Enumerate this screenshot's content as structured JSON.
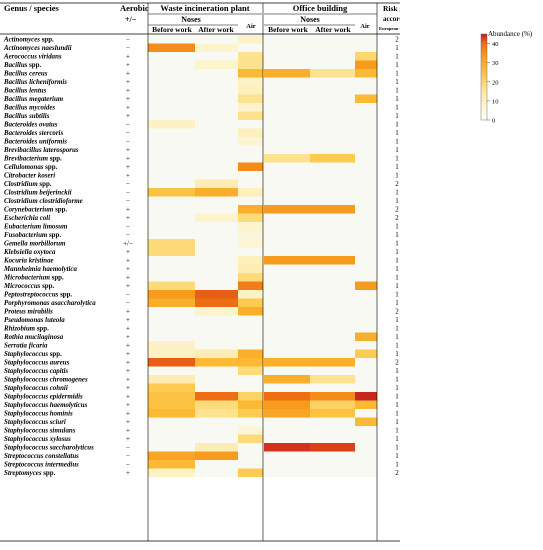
{
  "header": {
    "col_genus": "Genus / species",
    "col_aerobic": "Aerobic",
    "col_aerobic_sub": "+/−",
    "group_waste": "Waste incineration plant",
    "group_office": "Office building",
    "noses": "Noses",
    "air": "Air",
    "before_work": "Before work",
    "after_work": "After work",
    "risk_title_1": "Risk group",
    "risk_title_2": "according to",
    "risk_title_3": "European Commission, 2019"
  },
  "legend": {
    "title": "Abundance (%)",
    "ticks": [
      "40",
      "30",
      "20",
      "10",
      "0"
    ],
    "tick_values": [
      40,
      30,
      20,
      10,
      0
    ],
    "max": 45,
    "colors": [
      "#f7f9f2",
      "#fdf3c8",
      "#fde598",
      "#fdcf5a",
      "#fbb730",
      "#f79a1e",
      "#ee6f15",
      "#dd4418",
      "#c42020"
    ]
  },
  "chart_data": {
    "type": "heatmap",
    "columns": [
      "WIP noses before work",
      "WIP noses after work",
      "WIP air",
      "Office noses before work",
      "Office noses after work",
      "Office air"
    ],
    "rows": [
      {
        "name": "Actinomyces",
        "suffix": " spp.",
        "aerobic": "−",
        "risk": "2",
        "v": [
          0,
          0,
          6,
          0,
          0,
          0
        ]
      },
      {
        "name": "Actinomyces naeslundii",
        "suffix": "",
        "aerobic": "−",
        "risk": "1",
        "v": [
          30,
          5,
          0,
          0,
          0,
          0
        ]
      },
      {
        "name": "Aerococcus viridans",
        "suffix": "",
        "aerobic": "+",
        "risk": "1",
        "v": [
          0,
          0,
          12,
          0,
          0,
          15
        ]
      },
      {
        "name": "Bacillus",
        "suffix": " spp.",
        "aerobic": "+",
        "risk": "1",
        "v": [
          0,
          5,
          12,
          0,
          0,
          28
        ]
      },
      {
        "name": "Bacillus cereus",
        "suffix": "",
        "aerobic": "+",
        "risk": "1",
        "v": [
          0,
          0,
          22,
          24,
          12,
          22
        ]
      },
      {
        "name": "Bacillus licheniformis",
        "suffix": "",
        "aerobic": "+",
        "risk": "1",
        "v": [
          0,
          0,
          6,
          0,
          0,
          0
        ]
      },
      {
        "name": "Bacillus lentus",
        "suffix": "",
        "aerobic": "+",
        "risk": "1",
        "v": [
          0,
          0,
          7,
          0,
          0,
          0
        ]
      },
      {
        "name": "Bacillus megaterium",
        "suffix": "",
        "aerobic": "+",
        "risk": "1",
        "v": [
          0,
          0,
          12,
          0,
          0,
          22
        ]
      },
      {
        "name": "Bacillus mycoides",
        "suffix": "",
        "aerobic": "+",
        "risk": "1",
        "v": [
          0,
          0,
          5,
          0,
          0,
          0
        ]
      },
      {
        "name": "Bacillus subtilis",
        "suffix": "",
        "aerobic": "+",
        "risk": "1",
        "v": [
          0,
          0,
          12,
          0,
          0,
          0
        ]
      },
      {
        "name": "Bacteroides ovatus",
        "suffix": "",
        "aerobic": "−",
        "risk": "1",
        "v": [
          6,
          0,
          0,
          0,
          0,
          0
        ]
      },
      {
        "name": "Bacteroides stercoris",
        "suffix": "",
        "aerobic": "−",
        "risk": "1",
        "v": [
          0,
          0,
          7,
          0,
          0,
          0
        ]
      },
      {
        "name": "Bacteroides uniformis",
        "suffix": "",
        "aerobic": "−",
        "risk": "1",
        "v": [
          0,
          0,
          4,
          0,
          0,
          0
        ]
      },
      {
        "name": "Brevibacillus laterosporus",
        "suffix": "",
        "aerobic": "+",
        "risk": "1",
        "v": [
          0,
          0,
          0,
          0,
          0,
          0
        ]
      },
      {
        "name": "Brevibacterium",
        "suffix": " spp.",
        "aerobic": "+",
        "risk": "1",
        "v": [
          0,
          0,
          0,
          12,
          18,
          0
        ]
      },
      {
        "name": "Cellulomonas",
        "suffix": " spp.",
        "aerobic": "+",
        "risk": "1",
        "v": [
          0,
          0,
          30,
          0,
          0,
          0
        ]
      },
      {
        "name": "Citrobacter koseri",
        "suffix": "",
        "aerobic": "+",
        "risk": "1",
        "v": [
          0,
          0,
          0,
          0,
          0,
          0
        ]
      },
      {
        "name": "Clostridium",
        "suffix": " spp.",
        "aerobic": "−",
        "risk": "2",
        "v": [
          0,
          8,
          0,
          0,
          0,
          0
        ]
      },
      {
        "name": "Clostridium beijerinckii",
        "suffix": "",
        "aerobic": "−",
        "risk": "1",
        "v": [
          20,
          24,
          7,
          0,
          0,
          0
        ]
      },
      {
        "name": "Clostridium clostridioforme",
        "suffix": "",
        "aerobic": "−",
        "risk": "1",
        "v": [
          0,
          0,
          0,
          0,
          0,
          0
        ]
      },
      {
        "name": "Corynebacterium",
        "suffix": " spp.",
        "aerobic": "+",
        "risk": "2",
        "v": [
          0,
          0,
          24,
          28,
          28,
          0
        ]
      },
      {
        "name": "Escherichia coli",
        "suffix": "",
        "aerobic": "+",
        "risk": "2",
        "v": [
          0,
          5,
          14,
          0,
          0,
          0
        ]
      },
      {
        "name": "Eubacterium limosum",
        "suffix": "",
        "aerobic": "−",
        "risk": "1",
        "v": [
          0,
          0,
          5,
          0,
          0,
          0
        ]
      },
      {
        "name": "Fusobacterium",
        "suffix": " spp.",
        "aerobic": "−",
        "risk": "1",
        "v": [
          0,
          0,
          3,
          0,
          0,
          0
        ]
      },
      {
        "name": "Gemella morbillorum",
        "suffix": "",
        "aerobic": "+/−",
        "risk": "1",
        "v": [
          14,
          0,
          4,
          0,
          0,
          0
        ]
      },
      {
        "name": "Klebsiella oxytoca",
        "suffix": "",
        "aerobic": "+",
        "risk": "1",
        "v": [
          14,
          0,
          0,
          0,
          0,
          0
        ]
      },
      {
        "name": "Kocuria kristinae",
        "suffix": "",
        "aerobic": "+",
        "risk": "1",
        "v": [
          0,
          0,
          7,
          28,
          28,
          0
        ]
      },
      {
        "name": "Mannheimia haemolytica",
        "suffix": "",
        "aerobic": "+",
        "risk": "1",
        "v": [
          0,
          0,
          8,
          0,
          0,
          0
        ]
      },
      {
        "name": "Microbacterium",
        "suffix": " spp.",
        "aerobic": "+",
        "risk": "1",
        "v": [
          0,
          0,
          14,
          0,
          0,
          0
        ]
      },
      {
        "name": "Micrococcus",
        "suffix": " spp.",
        "aerobic": "+",
        "risk": "1",
        "v": [
          14,
          0,
          32,
          0,
          0,
          28
        ]
      },
      {
        "name": "Peptostreptococcus",
        "suffix": " spp.",
        "aerobic": "−",
        "risk": "1",
        "v": [
          28,
          36,
          6,
          0,
          0,
          0
        ]
      },
      {
        "name": "Porphyromonas asaccharolytica",
        "suffix": "",
        "aerobic": "−",
        "risk": "1",
        "v": [
          24,
          34,
          18,
          0,
          0,
          0
        ]
      },
      {
        "name": "Proteus mirabilis",
        "suffix": "",
        "aerobic": "+",
        "risk": "2",
        "v": [
          0,
          5,
          24,
          0,
          0,
          0
        ]
      },
      {
        "name": "Pseudomonas luteola",
        "suffix": "",
        "aerobic": "+",
        "risk": "1",
        "v": [
          0,
          0,
          0,
          0,
          0,
          0
        ]
      },
      {
        "name": "Rhizobium",
        "suffix": " spp.",
        "aerobic": "+",
        "risk": "1",
        "v": [
          0,
          0,
          0,
          0,
          0,
          0
        ]
      },
      {
        "name": "Rothia mucilaginosa",
        "suffix": "",
        "aerobic": "+",
        "risk": "1",
        "v": [
          0,
          0,
          0,
          0,
          0,
          24
        ]
      },
      {
        "name": "Serratia ficaria",
        "suffix": "",
        "aerobic": "+",
        "risk": "1",
        "v": [
          6,
          0,
          0,
          0,
          0,
          0
        ]
      },
      {
        "name": "Staphylococcus",
        "suffix": " spp.",
        "aerobic": "+",
        "risk": "1",
        "v": [
          6,
          8,
          24,
          0,
          0,
          18
        ]
      },
      {
        "name": "Staphylococcus aureus",
        "suffix": "",
        "aerobic": "+",
        "risk": "2",
        "v": [
          36,
          22,
          22,
          24,
          24,
          0
        ]
      },
      {
        "name": "Staphylococcus capitis",
        "suffix": "",
        "aerobic": "+",
        "risk": "1",
        "v": [
          0,
          0,
          14,
          0,
          0,
          0
        ]
      },
      {
        "name": "Staphylococcus chromogenes",
        "suffix": "",
        "aerobic": "+",
        "risk": "1",
        "v": [
          8,
          0,
          0,
          24,
          12,
          0
        ]
      },
      {
        "name": "Staphylococcus cohnii",
        "suffix": "",
        "aerobic": "+",
        "risk": "1",
        "v": [
          18,
          0,
          0,
          0,
          0,
          0
        ]
      },
      {
        "name": "Staphylococcus epidermidis",
        "suffix": "",
        "aerobic": "+",
        "risk": "1",
        "v": [
          20,
          34,
          16,
          34,
          30,
          44
        ]
      },
      {
        "name": "Staphylococcus haemolyticus",
        "suffix": "",
        "aerobic": "+",
        "risk": "1",
        "v": [
          20,
          14,
          22,
          28,
          16,
          22
        ]
      },
      {
        "name": "Staphylococcus hominis",
        "suffix": "",
        "aerobic": "+",
        "risk": "1",
        "v": [
          22,
          12,
          18,
          26,
          20,
          0
        ]
      },
      {
        "name": "Staphylococcus sciuri",
        "suffix": "",
        "aerobic": "+",
        "risk": "1",
        "v": [
          0,
          0,
          0,
          0,
          0,
          22
        ]
      },
      {
        "name": "Staphylococcus simulans",
        "suffix": "",
        "aerobic": "+",
        "risk": "1",
        "v": [
          0,
          0,
          4,
          0,
          0,
          0
        ]
      },
      {
        "name": "Staphylococcus xylosus",
        "suffix": "",
        "aerobic": "+",
        "risk": "1",
        "v": [
          0,
          0,
          14,
          0,
          0,
          0
        ]
      },
      {
        "name": "Staphylococcus saccharolyticus",
        "suffix": "",
        "aerobic": "−",
        "risk": "1",
        "v": [
          0,
          8,
          0,
          42,
          40,
          0
        ]
      },
      {
        "name": "Streptococcus constellatus",
        "suffix": "",
        "aerobic": "−",
        "risk": "1",
        "v": [
          26,
          28,
          0,
          0,
          0,
          0
        ]
      },
      {
        "name": "Streptococcus intermedius",
        "suffix": "",
        "aerobic": "−",
        "risk": "1",
        "v": [
          22,
          0,
          0,
          0,
          0,
          0
        ]
      },
      {
        "name": "Streptomyces",
        "suffix": " spp.",
        "aerobic": "+",
        "risk": "2",
        "v": [
          6,
          0,
          18,
          0,
          0,
          0
        ]
      }
    ]
  }
}
